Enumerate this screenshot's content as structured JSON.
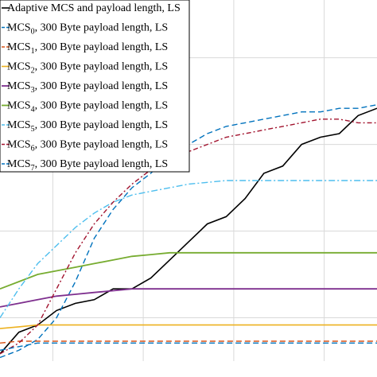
{
  "chart_data": {
    "type": "line",
    "title": "",
    "xlabel": "",
    "ylabel": "",
    "xlim": [
      0,
      100
    ],
    "ylim": [
      0,
      100
    ],
    "grid": true,
    "legend_position": "top-left",
    "x": [
      0,
      5,
      10,
      15,
      20,
      25,
      30,
      35,
      40,
      45,
      50,
      55,
      60,
      65,
      70,
      75,
      80,
      85,
      90,
      95,
      100
    ],
    "series": [
      {
        "name": "Adaptive MCS and payload length, LS",
        "legend_main": "Adaptive MCS and payload length, LS",
        "legend_sub": "",
        "legend_tail": "",
        "color": "#000000",
        "dash": "",
        "width": 1.6,
        "values": [
          2,
          8,
          10,
          14,
          16,
          17,
          20,
          20,
          23,
          28,
          33,
          38,
          40,
          45,
          52,
          54,
          60,
          62,
          63,
          68,
          70
        ]
      },
      {
        "name": "MCS0, 300 Byte payload length, LS",
        "legend_main": "MCS",
        "legend_sub": "0",
        "legend_tail": ", 300 Byte payload length, LS",
        "color": "#0072BD",
        "dash": "7,4",
        "width": 1.4,
        "values": [
          1,
          3,
          6,
          12,
          22,
          34,
          42,
          48,
          52,
          57,
          60,
          63,
          65,
          66,
          67,
          68,
          69,
          69,
          70,
          70,
          71
        ]
      },
      {
        "name": "MCS1, 300 Byte payload length, LS",
        "legend_main": "MCS",
        "legend_sub": "1",
        "legend_tail": ", 300 Byte payload length, LS",
        "color": "#D95319",
        "dash": "7,4",
        "width": 1.4,
        "values": [
          5,
          5.5,
          5.5,
          5.5,
          5.5,
          5.5,
          5.5,
          5.5,
          5.5,
          5.5,
          5.5,
          5.5,
          5.5,
          5.5,
          5.5,
          5.5,
          5.5,
          5.5,
          5.5,
          5.5,
          5.5
        ]
      },
      {
        "name": "MCS2, 300 Byte payload length, LS",
        "legend_main": "MCS",
        "legend_sub": "2",
        "legend_tail": ", 300 Byte payload length, LS",
        "color": "#EDB120",
        "dash": "",
        "width": 1.6,
        "values": [
          9,
          9.5,
          10,
          10,
          10,
          10,
          10,
          10,
          10,
          10,
          10,
          10,
          10,
          10,
          10,
          10,
          10,
          10,
          10,
          10,
          10
        ]
      },
      {
        "name": "MCS3, 300 Byte payload length, LS",
        "legend_main": "MCS",
        "legend_sub": "3",
        "legend_tail": ", 300 Byte payload length, LS",
        "color": "#7E2F8E",
        "dash": "",
        "width": 1.8,
        "values": [
          15,
          16,
          17,
          18,
          18.5,
          19,
          19.5,
          20,
          20,
          20,
          20,
          20,
          20,
          20,
          20,
          20,
          20,
          20,
          20,
          20,
          20
        ]
      },
      {
        "name": "MCS4, 300 Byte payload length, LS",
        "legend_main": "MCS",
        "legend_sub": "4",
        "legend_tail": ", 300 Byte payload length, LS",
        "color": "#77AC30",
        "dash": "",
        "width": 1.8,
        "values": [
          20,
          22,
          24,
          25,
          26,
          27,
          28,
          29,
          29.5,
          30,
          30,
          30,
          30,
          30,
          30,
          30,
          30,
          30,
          30,
          30,
          30
        ]
      },
      {
        "name": "MCS5, 300 Byte payload length, LS",
        "legend_main": "MCS",
        "legend_sub": "5",
        "legend_tail": ", 300 Byte payload length, LS",
        "color": "#4DBEEE",
        "dash": "8,3,2,3",
        "width": 1.4,
        "values": [
          12,
          20,
          27,
          32,
          37,
          41,
          44,
          46,
          47,
          48,
          49,
          49.5,
          50,
          50,
          50,
          50,
          50,
          50,
          50,
          50,
          50
        ]
      },
      {
        "name": "MCS6, 300 Byte payload length, LS",
        "legend_main": "MCS",
        "legend_sub": "6",
        "legend_tail": ", 300 Byte payload length, LS",
        "color": "#A2142F",
        "dash": "6,3,2,3",
        "width": 1.4,
        "values": [
          2,
          5,
          10,
          20,
          30,
          38,
          44,
          49,
          53,
          56,
          58,
          60,
          62,
          63,
          64,
          65,
          66,
          67,
          67,
          66,
          66
        ]
      },
      {
        "name": "MCS7, 300 Byte payload length, LS",
        "legend_main": "MCS",
        "legend_sub": "7",
        "legend_tail": ", 300 Byte payload length, LS",
        "color": "#0072BD",
        "dash": "7,4",
        "width": 1.4,
        "values": [
          3,
          4,
          5,
          5,
          5,
          5,
          5,
          5,
          5,
          5,
          5,
          5,
          5,
          5,
          5,
          5,
          5,
          5,
          5,
          5,
          5
        ]
      }
    ]
  }
}
